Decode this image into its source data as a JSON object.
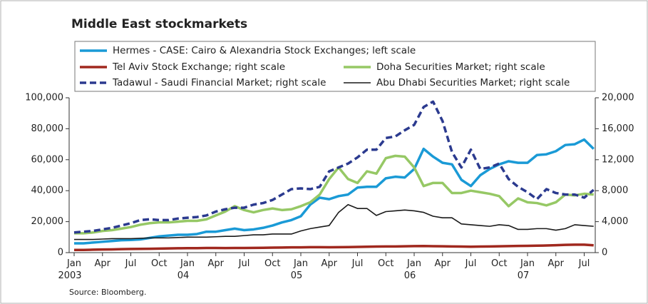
{
  "chart_data": {
    "type": "line",
    "title": "Middle East stockmarkets",
    "source": "Source: Bloomberg.",
    "categories": [
      "Jan 2003",
      null,
      null,
      "Apr",
      null,
      null,
      "Jul",
      null,
      null,
      "Oct",
      null,
      null,
      "Jan 04",
      null,
      null,
      "Apr",
      null,
      null,
      "Jul",
      null,
      null,
      "Oct",
      null,
      null,
      "Jan 05",
      null,
      null,
      "Apr",
      null,
      null,
      "Jul",
      null,
      null,
      "Oct",
      null,
      null,
      "Jan 06",
      null,
      null,
      "Apr",
      null,
      null,
      "Jul",
      null,
      null,
      "Oct",
      null,
      null,
      "Jan 07",
      null,
      null,
      "Apr",
      null,
      null,
      "Jul",
      null
    ],
    "ylim": [
      0,
      100000
    ],
    "yticks": [
      0,
      {
        "value": 20000,
        "label": "20,000"
      },
      {
        "value": 40000,
        "label": "40,000"
      },
      {
        "value": 60000,
        "label": "60,000"
      },
      {
        "value": 80000,
        "label": "80,000"
      },
      {
        "value": 100000,
        "label": "100,000"
      }
    ],
    "y2lim": [
      0,
      20000
    ],
    "y2ticks": [
      0,
      {
        "value": 4000,
        "label": "4,000"
      },
      {
        "value": 8000,
        "label": "8,000"
      },
      {
        "value": 12000,
        "label": "12,000"
      },
      {
        "value": 16000,
        "label": "16,000"
      },
      {
        "value": 20000,
        "label": "20,000"
      }
    ],
    "grid": false,
    "series": [
      {
        "name": "Hermes - CASE: Cairo & Alexandria Stock Exchanges; left scale",
        "color": "#1a9ad6",
        "axis": "y",
        "values": [
          6000,
          6000,
          6500,
          7000,
          7500,
          8000,
          8200,
          8500,
          9500,
          10500,
          11000,
          11500,
          11500,
          12000,
          13500,
          13500,
          14500,
          15500,
          14500,
          15000,
          16000,
          17500,
          19500,
          21000,
          23500,
          31000,
          35500,
          34500,
          36500,
          37500,
          42000,
          42500,
          42500,
          48000,
          49000,
          48500,
          54000,
          67000,
          62000,
          58000,
          57000,
          47000,
          43000,
          50000,
          54000,
          57000,
          59000,
          58000,
          58000,
          63000,
          63500,
          65500,
          69500,
          70000,
          73000,
          67000
        ]
      },
      {
        "name": "Tel Aviv Stock Exchange; right scale",
        "color": "#a0281e",
        "axis": "y2",
        "values": [
          350,
          350,
          380,
          400,
          420,
          450,
          470,
          480,
          500,
          520,
          540,
          560,
          580,
          580,
          600,
          600,
          590,
          600,
          600,
          610,
          620,
          640,
          660,
          680,
          680,
          700,
          700,
          690,
          700,
          720,
          740,
          760,
          780,
          790,
          800,
          820,
          840,
          850,
          830,
          820,
          800,
          780,
          760,
          780,
          800,
          820,
          840,
          860,
          880,
          900,
          920,
          960,
          1000,
          1020,
          1020,
          950
        ]
      },
      {
        "name": "Doha Securities Market; right scale",
        "color": "#96c865",
        "axis": "y2",
        "values": [
          2500,
          2500,
          2600,
          2800,
          2900,
          3100,
          3300,
          3600,
          3800,
          3900,
          3900,
          4000,
          4100,
          4100,
          4300,
          4800,
          5300,
          6000,
          5500,
          5200,
          5500,
          5700,
          5500,
          5600,
          6000,
          6500,
          7500,
          9500,
          11000,
          9500,
          9000,
          10500,
          10200,
          12200,
          12500,
          12400,
          11000,
          8600,
          9000,
          9000,
          7700,
          7700,
          8000,
          7800,
          7600,
          7300,
          6000,
          7000,
          6500,
          6400,
          6100,
          6500,
          7500,
          7400,
          7600,
          7500
        ]
      },
      {
        "name": "Tadawul - Saudi Financial Market; right scale",
        "color": "#2b3a8f",
        "axis": "y2",
        "dashed": true,
        "values": [
          2600,
          2700,
          2800,
          3000,
          3200,
          3500,
          3800,
          4200,
          4300,
          4200,
          4200,
          4400,
          4500,
          4600,
          4800,
          5300,
          5600,
          5800,
          5800,
          6200,
          6400,
          6800,
          7500,
          8200,
          8300,
          8200,
          8500,
          10500,
          11000,
          11500,
          12300,
          13300,
          13300,
          14800,
          15000,
          15800,
          16500,
          18800,
          19500,
          17000,
          13000,
          11000,
          13300,
          10800,
          11000,
          11500,
          9500,
          8500,
          7800,
          6900,
          8200,
          7700,
          7500,
          7500,
          7100,
          8100
        ]
      },
      {
        "name": "Abu Dhabi Securities Market; right scale",
        "color": "#1a1a1a",
        "axis": "y2",
        "values": [
          1700,
          1700,
          1700,
          1750,
          1800,
          1800,
          1800,
          1850,
          1900,
          1900,
          1900,
          1950,
          2000,
          2000,
          2000,
          2050,
          2100,
          2100,
          2200,
          2300,
          2300,
          2400,
          2400,
          2400,
          2800,
          3100,
          3300,
          3500,
          5200,
          6200,
          5700,
          5700,
          4800,
          5300,
          5400,
          5500,
          5400,
          5200,
          4700,
          4500,
          4500,
          3700,
          3600,
          3500,
          3400,
          3600,
          3500,
          3000,
          3000,
          3100,
          3100,
          2900,
          3100,
          3600,
          3500,
          3400
        ]
      }
    ]
  }
}
